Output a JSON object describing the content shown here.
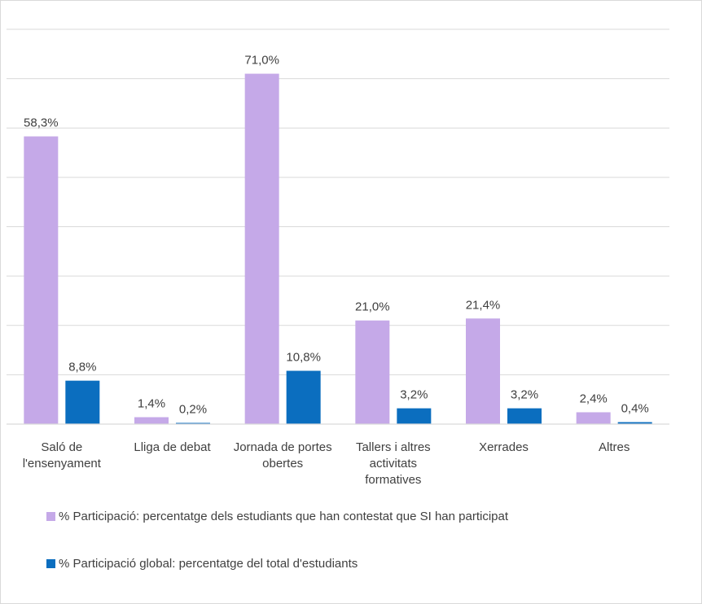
{
  "chart_data": {
    "type": "bar",
    "categories": [
      [
        "Saló de",
        "l'ensenyament"
      ],
      [
        "Lliga de debat"
      ],
      [
        "Jornada de portes",
        "obertes"
      ],
      [
        "Tallers i altres",
        "activitats",
        "formatives"
      ],
      [
        "Xerrades"
      ],
      [
        "Altres"
      ]
    ],
    "series": [
      {
        "name": "% Participació: percentatge dels estudiants que han contestat que SI han participat",
        "values": [
          58.3,
          1.4,
          71.0,
          21.0,
          21.4,
          2.4
        ],
        "labels": [
          "58,3%",
          "1,4%",
          "71,0%",
          "21,0%",
          "21,4%",
          "2,4%"
        ],
        "color": "#c5a9e8"
      },
      {
        "name": "% Participació global: percentatge del total d'estudiants",
        "values": [
          8.8,
          0.2,
          10.8,
          3.2,
          3.2,
          0.4
        ],
        "labels": [
          "8,8%",
          "0,2%",
          "10,8%",
          "3,2%",
          "3,2%",
          "0,4%"
        ],
        "color": "#0b6ebf"
      }
    ],
    "ylim": [
      0,
      80
    ],
    "grid": true,
    "legend_position": "bottom"
  }
}
